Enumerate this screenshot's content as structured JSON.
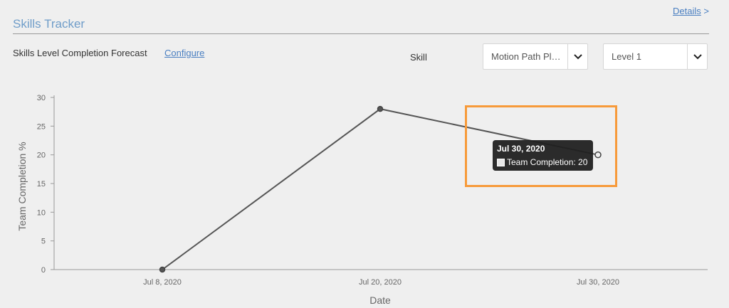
{
  "header": {
    "details_label": "Details",
    "details_chevron": ">",
    "title": "Skills Tracker"
  },
  "toolbar": {
    "forecast_label": "Skills Level Completion Forecast",
    "configure_label": "Configure",
    "skill_label": "Skill",
    "skill_select_value": "Motion Path Pl…",
    "level_select_value": "Level 1"
  },
  "tooltip": {
    "title": "Jul 30, 2020",
    "series_label": "Team Completion: 20"
  },
  "colors": {
    "highlight": "#f79a3a",
    "line": "#555555",
    "title": "#6f9dc9",
    "link": "#4a7fc1"
  },
  "chart_data": {
    "type": "line",
    "x": [
      "Jul 8, 2020",
      "Jul 20, 2020",
      "Jul 30, 2020"
    ],
    "series": [
      {
        "name": "Team Completion",
        "values": [
          0,
          28,
          20
        ]
      }
    ],
    "xlabel": "Date",
    "ylabel": "Team Completion %",
    "ylim": [
      0,
      30
    ],
    "yticks": [
      0,
      5,
      10,
      15,
      20,
      25,
      30
    ],
    "grid": false,
    "legend": "none"
  }
}
